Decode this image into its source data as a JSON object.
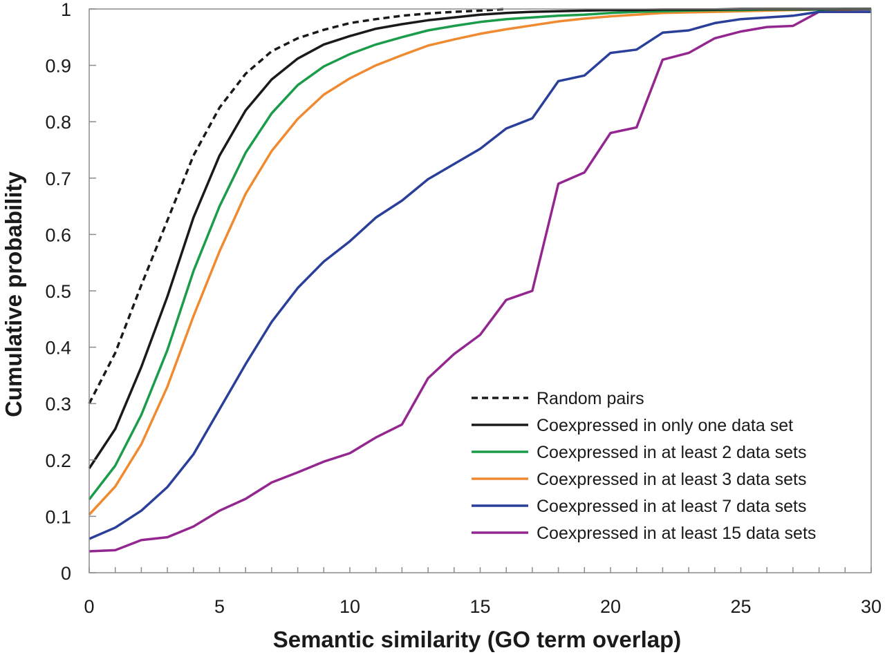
{
  "chart_data": {
    "type": "line",
    "title": "",
    "xlabel": "Semantic similarity (GO term overlap)",
    "ylabel": "Cumulative probability",
    "xlim": [
      0,
      30
    ],
    "ylim": [
      0,
      1
    ],
    "xticks": [
      0,
      5,
      10,
      15,
      20,
      25,
      30
    ],
    "xtick_labels": [
      "0",
      "5",
      "10",
      "15",
      "20",
      "25",
      "30"
    ],
    "yticks": [
      0,
      0.1,
      0.2,
      0.3,
      0.4,
      0.5,
      0.6,
      0.7,
      0.8,
      0.9,
      1
    ],
    "ytick_labels": [
      "0",
      "0.1",
      "0.2",
      "0.3",
      "0.4",
      "0.5",
      "0.6",
      "0.7",
      "0.8",
      "0.9",
      "1"
    ],
    "grid": false,
    "legend_position": "bottom-right",
    "series": [
      {
        "name": "Random pairs",
        "color": "#1a1a1a",
        "dashed": true,
        "x": [
          0,
          1,
          2,
          3,
          4,
          5,
          6,
          7,
          8,
          9,
          10,
          11,
          12,
          13,
          14,
          15,
          16
        ],
        "y": [
          0.3,
          0.39,
          0.51,
          0.625,
          0.74,
          0.825,
          0.885,
          0.925,
          0.948,
          0.963,
          0.975,
          0.982,
          0.988,
          0.992,
          0.995,
          0.997,
          1.0
        ]
      },
      {
        "name": "Coexpressed in only one data set",
        "color": "#1a1a1a",
        "dashed": false,
        "x": [
          0,
          1,
          2,
          3,
          4,
          5,
          6,
          7,
          8,
          9,
          10,
          11,
          12,
          13,
          14,
          15,
          16,
          17,
          18,
          19,
          20,
          21,
          22,
          23,
          24,
          25,
          26,
          27,
          28,
          29,
          30
        ],
        "y": [
          0.185,
          0.255,
          0.365,
          0.49,
          0.63,
          0.74,
          0.82,
          0.875,
          0.912,
          0.937,
          0.952,
          0.965,
          0.973,
          0.98,
          0.985,
          0.99,
          0.993,
          0.995,
          0.996,
          0.997,
          0.998,
          0.998,
          0.999,
          0.999,
          0.999,
          1.0,
          1.0,
          1.0,
          1.0,
          1.0,
          1.0
        ]
      },
      {
        "name": "Coexpressed in at least 2 data sets",
        "color": "#1a9c4a",
        "dashed": false,
        "x": [
          0,
          1,
          2,
          3,
          4,
          5,
          6,
          7,
          8,
          9,
          10,
          11,
          12,
          13,
          14,
          15,
          16,
          17,
          18,
          19,
          20,
          21,
          22,
          23,
          24,
          25,
          26,
          27,
          28,
          29,
          30
        ],
        "y": [
          0.13,
          0.19,
          0.28,
          0.395,
          0.535,
          0.65,
          0.745,
          0.815,
          0.865,
          0.898,
          0.92,
          0.937,
          0.95,
          0.962,
          0.97,
          0.977,
          0.982,
          0.985,
          0.988,
          0.99,
          0.993,
          0.995,
          0.996,
          0.997,
          0.998,
          0.998,
          0.999,
          0.999,
          0.999,
          1.0,
          1.0
        ]
      },
      {
        "name": "Coexpressed in at least 3 data sets",
        "color": "#f08a30",
        "dashed": false,
        "x": [
          0,
          1,
          2,
          3,
          4,
          5,
          6,
          7,
          8,
          9,
          10,
          11,
          12,
          13,
          14,
          15,
          16,
          17,
          18,
          19,
          20,
          21,
          22,
          23,
          24,
          25,
          26,
          27,
          28,
          29,
          30
        ],
        "y": [
          0.103,
          0.153,
          0.228,
          0.33,
          0.455,
          0.57,
          0.672,
          0.748,
          0.805,
          0.848,
          0.877,
          0.9,
          0.918,
          0.935,
          0.946,
          0.956,
          0.964,
          0.971,
          0.978,
          0.983,
          0.987,
          0.99,
          0.993,
          0.994,
          0.995,
          0.996,
          0.997,
          0.998,
          0.999,
          0.999,
          1.0
        ]
      },
      {
        "name": "Coexpressed in at least 7 data sets",
        "color": "#2a3f9a",
        "dashed": false,
        "x": [
          0,
          1,
          2,
          3,
          4,
          5,
          6,
          7,
          8,
          9,
          10,
          11,
          12,
          13,
          14,
          15,
          16,
          17,
          18,
          19,
          20,
          21,
          22,
          23,
          24,
          25,
          26,
          27,
          28,
          29,
          30
        ],
        "y": [
          0.06,
          0.08,
          0.11,
          0.152,
          0.21,
          0.29,
          0.37,
          0.445,
          0.505,
          0.552,
          0.588,
          0.63,
          0.66,
          0.698,
          0.725,
          0.752,
          0.788,
          0.806,
          0.872,
          0.882,
          0.922,
          0.928,
          0.958,
          0.962,
          0.975,
          0.982,
          0.985,
          0.988,
          0.995,
          0.995,
          0.995
        ]
      },
      {
        "name": "Coexpressed in at least 15 data sets",
        "color": "#93278f",
        "dashed": false,
        "x": [
          0,
          1,
          2,
          3,
          4,
          5,
          6,
          7,
          8,
          9,
          10,
          11,
          12,
          13,
          14,
          15,
          16,
          17,
          18,
          19,
          20,
          21,
          22,
          23,
          24,
          25,
          26,
          27,
          28,
          29,
          30
        ],
        "y": [
          0.038,
          0.04,
          0.058,
          0.063,
          0.082,
          0.11,
          0.131,
          0.16,
          0.178,
          0.197,
          0.212,
          0.24,
          0.263,
          0.345,
          0.388,
          0.422,
          0.484,
          0.5,
          0.69,
          0.71,
          0.78,
          0.79,
          0.91,
          0.922,
          0.948,
          0.96,
          0.968,
          0.97,
          0.995,
          0.995,
          0.995
        ]
      }
    ]
  }
}
